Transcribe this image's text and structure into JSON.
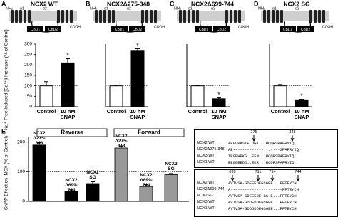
{
  "chart_data": [
    {
      "type": "bar",
      "panel": "A",
      "title": "NCX2 WT",
      "categories": [
        "Control",
        "10 nM SNAP"
      ],
      "values": [
        100,
        210
      ],
      "errors": [
        20,
        20
      ],
      "colors": [
        "#ffffff",
        "#000000"
      ],
      "ylabel": "Na⁺-Free Induced [Ca²⁺]i Increase (% of Control)",
      "ylim": [
        0,
        300
      ],
      "yticks": [
        0,
        50,
        100,
        150,
        200,
        250,
        300
      ],
      "reference_line": 100,
      "annotation": "*"
    },
    {
      "type": "bar",
      "panel": "B",
      "title": "NCX2Δ275-348",
      "categories": [
        "Control",
        "10 nM SNAP"
      ],
      "values": [
        100,
        270
      ],
      "errors": [
        3,
        8
      ],
      "colors": [
        "#ffffff",
        "#000000"
      ],
      "ylim": [
        0,
        300
      ],
      "reference_line": 100,
      "annotation": "*"
    },
    {
      "type": "bar",
      "panel": "C",
      "title": "NCX2Δ699-744",
      "categories": [
        "Control",
        "10 nM SNAP"
      ],
      "values": [
        100,
        38
      ],
      "errors": [
        2,
        5
      ],
      "colors": [
        "#ffffff",
        "#000000"
      ],
      "ylim": [
        0,
        300
      ],
      "reference_line": 100,
      "annotation": "*"
    },
    {
      "type": "bar",
      "panel": "D",
      "title": "NCX2 SG",
      "categories": [
        "Control",
        "10 nM SNAP"
      ],
      "values": [
        100,
        33
      ],
      "errors": [
        6,
        3
      ],
      "colors": [
        "#ffffff",
        "#000000"
      ],
      "ylim": [
        0,
        300
      ],
      "reference_line": 100,
      "annotation": "*"
    },
    {
      "type": "grouped-bar",
      "panel": "E",
      "categories": [
        "NCX2 Δ275-348",
        "NCX2 Δ699-744",
        "NCX2 SG"
      ],
      "series": [
        {
          "name": "Reverse",
          "color": "#000000",
          "values": [
            190,
            35,
            60
          ],
          "errors": [
            8,
            4,
            6
          ]
        },
        {
          "name": "Forward",
          "color": "#999999",
          "values": [
            180,
            50,
            90
          ],
          "errors": [
            7,
            6,
            4
          ]
        }
      ],
      "ylabel": "SNAP Effect on INCX (% of Control)",
      "ylim": [
        0,
        210
      ],
      "yticks": [
        0,
        100,
        200
      ],
      "reference_line": 100
    }
  ],
  "diagram_labels": {
    "n_term": "NH₂",
    "helix1": "α1",
    "helix2": "α2",
    "c_term": "COOH",
    "cbd1": "CBD1",
    "cbd2": "CBD2"
  },
  "sequence_alignments": [
    {
      "markers": [
        275,
        348
      ],
      "rows": [
        {
          "name": "NCX2 WT",
          "sequence": "AEGDPKSIELDGT...HQQRSPAFRYIQ"
        },
        {
          "name": "NCX2Δ275-348",
          "sequence": "AE-------------...----SPAFRYIQ"
        },
        {
          "name": "NCX3 WT",
          "sequence": "TEGEHPKG..EEM...HQQRSPAFRYIQ"
        },
        {
          "name": "NCX1 WT",
          "sequence": "EEGGEEDD..EKR...HQQRSPAFRYIQ"
        }
      ]
    },
    {
      "markers": [
        699,
        711,
        714,
        744
      ],
      "rows": [
        {
          "name": "NCX2 WT",
          "sequence": "AVTVSA-GDEEEDEGSGEE...PFTEYCH"
        },
        {
          "name": "NCX2Δ699-744",
          "sequence": "A----------------------PFTEYCH"
        },
        {
          "name": "NCX2SG",
          "sequence": "AVTVSA-GDEEEDE-SG-E...PFTEYCH"
        },
        {
          "name": "NCX3 WT",
          "sequence": "AVTVSA-GDDEDDEGSGEE...PFTEYCH"
        },
        {
          "name": "NCX1 WT",
          "sequence": "AVTVSA-GDDDDDEGSGEE...PFTEYCH"
        }
      ]
    }
  ]
}
